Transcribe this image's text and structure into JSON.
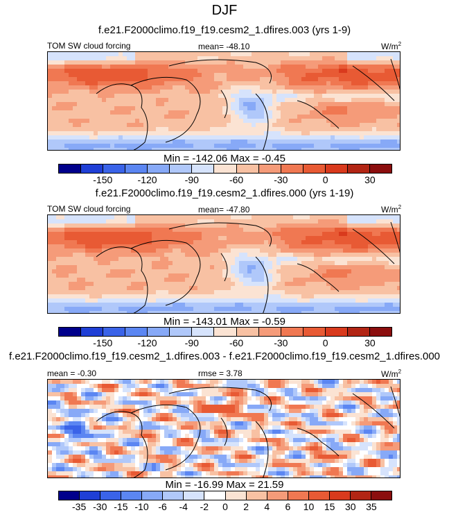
{
  "figure_title": "DJF",
  "chart_data": [
    {
      "type": "heatmap",
      "title": "f.e21.F2000climo.f19_f19.cesm2_1.dfires.003 (yrs 1-9)",
      "variable_label": "TOM SW cloud forcing",
      "mean_label": "mean= -48.10",
      "units_label": "W/m",
      "units_sup": "2",
      "min": -142.06,
      "max": -0.45,
      "minmax_label": "Min = -142.06 Max =  -0.45",
      "colorbar_ticks": [
        "-150",
        "-120",
        "-90",
        "-60",
        "-30",
        "0",
        "30"
      ],
      "colorbar_levels": [
        -165,
        -150,
        -135,
        -120,
        -105,
        -90,
        -75,
        -60,
        -45,
        -30,
        -15,
        0,
        15,
        30,
        45
      ],
      "colors": [
        "#00008b",
        "#1f3fd6",
        "#3a63e8",
        "#5b86f2",
        "#87a9f7",
        "#b0c8fa",
        "#d6e3fc",
        "#fbe3d3",
        "#f8c1a3",
        "#f59b79",
        "#f07852",
        "#e85a34",
        "#d93a1d",
        "#b22514",
        "#8b0e0e"
      ]
    },
    {
      "type": "heatmap",
      "title": "f.e21.F2000climo.f19_f19.cesm2_1.dfires.000 (yrs 1-19)",
      "variable_label": "TOM SW cloud forcing",
      "mean_label": "mean= -47.80",
      "units_label": "W/m",
      "units_sup": "2",
      "min": -143.01,
      "max": -0.59,
      "minmax_label": "Min = -143.01 Max =  -0.59",
      "colorbar_ticks": [
        "-150",
        "-120",
        "-90",
        "-60",
        "-30",
        "0",
        "30"
      ],
      "colorbar_levels": [
        -165,
        -150,
        -135,
        -120,
        -105,
        -90,
        -75,
        -60,
        -45,
        -30,
        -15,
        0,
        15,
        30,
        45
      ],
      "colors": [
        "#00008b",
        "#1f3fd6",
        "#3a63e8",
        "#5b86f2",
        "#87a9f7",
        "#b0c8fa",
        "#d6e3fc",
        "#fbe3d3",
        "#f8c1a3",
        "#f59b79",
        "#f07852",
        "#e85a34",
        "#d93a1d",
        "#b22514",
        "#8b0e0e"
      ]
    },
    {
      "type": "heatmap",
      "title": "f.e21.F2000climo.f19_f19.cesm2_1.dfires.003 - f.e21.F2000climo.f19_f19.cesm2_1.dfires.000",
      "variable_label": "mean =  -0.30",
      "mean_label": "rmse =   3.78",
      "units_label": "W/m",
      "units_sup": "2",
      "min": -16.99,
      "max": 21.59,
      "minmax_label": "Min = -16.99 Max =  21.59",
      "colorbar_ticks": [
        "-35",
        "-30",
        "-15",
        "-10",
        "-6",
        "-4",
        "-2",
        "0",
        "2",
        "4",
        "6",
        "10",
        "15",
        "30",
        "35"
      ],
      "colorbar_levels": [
        -35,
        -30,
        -15,
        -10,
        -6,
        -4,
        -2,
        0,
        2,
        4,
        6,
        10,
        15,
        30,
        35
      ],
      "colors": [
        "#00008b",
        "#1f3fd6",
        "#3a63e8",
        "#5b86f2",
        "#87a9f7",
        "#b0c8fa",
        "#d6e3fc",
        "#ffffff",
        "#fbe3d3",
        "#f8c1a3",
        "#f59b79",
        "#f07852",
        "#e85a34",
        "#d93a1d",
        "#b22514",
        "#8b0e0e"
      ]
    }
  ]
}
